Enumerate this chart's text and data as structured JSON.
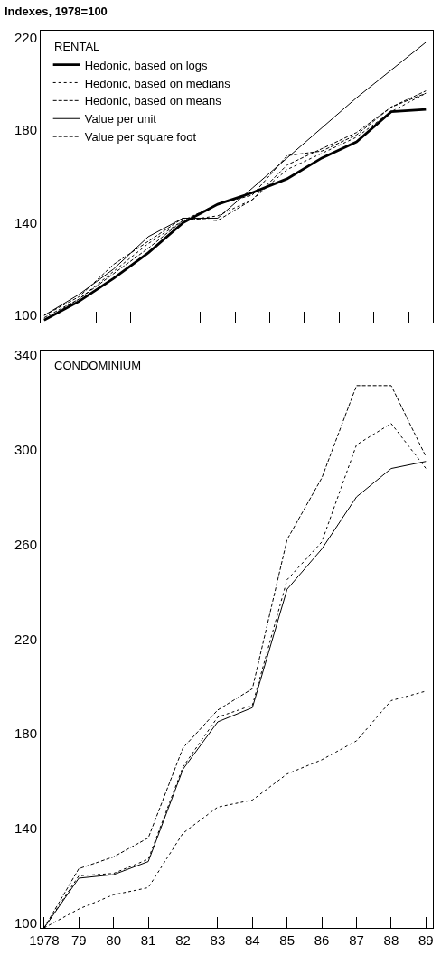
{
  "chart_data": [
    {
      "type": "line",
      "title": "RENTAL",
      "ylabel": "Indexes, 1978=100",
      "x": [
        1978,
        1979,
        1980,
        1981,
        1982,
        1983,
        1984,
        1985,
        1986,
        1987,
        1988,
        1989
      ],
      "xlim": [
        1977.9,
        1989.2
      ],
      "xticks": [
        {
          "value": 1979.5,
          "label": null
        },
        {
          "value": 1980.5,
          "label": null
        },
        {
          "value": 1982.5,
          "label": null
        },
        {
          "value": 1983.5,
          "label": null
        },
        {
          "value": 1984.5,
          "label": null
        },
        {
          "value": 1985.5,
          "label": null
        },
        {
          "value": 1986.5,
          "label": null
        },
        {
          "value": 1987.5,
          "label": null
        },
        {
          "value": 1988.5,
          "label": null
        }
      ],
      "ylim": [
        97,
        223
      ],
      "yticks": [
        100,
        140,
        180,
        220
      ],
      "tick_labels": "y",
      "legend": "top left",
      "marker": "none",
      "series": [
        {
          "name": "Hedonic, based on logs",
          "color": "#000000",
          "line_style": "solid",
          "values": [
            98,
            106,
            116,
            127,
            140,
            148,
            153,
            159,
            168,
            175,
            188,
            189
          ]
        },
        {
          "name": "Hedonic, based on medians",
          "color": "#000000",
          "line_style": "dotted",
          "values": [
            98,
            107,
            119,
            131,
            141,
            143,
            150,
            163,
            170,
            177,
            188,
            196
          ]
        },
        {
          "name": "Hedonic, based on means",
          "color": "#000000",
          "line_style": "dashed",
          "values": [
            99,
            107,
            118,
            129,
            141,
            148,
            152,
            169,
            171,
            178,
            190,
            197
          ]
        },
        {
          "name": "Value per unit",
          "color": "#000000",
          "line_style": "solid",
          "values": [
            100,
            109,
            120,
            134,
            142,
            142,
            155,
            168,
            181,
            194,
            206,
            218
          ]
        },
        {
          "name": "Value per square foot",
          "color": "#000000",
          "line_style": "dashed",
          "values": [
            100,
            108,
            122,
            132,
            142,
            141,
            150,
            165,
            172,
            179,
            190,
            196
          ]
        }
      ]
    },
    {
      "type": "line",
      "title": "CONDOMINIUM",
      "x": [
        1978,
        1979,
        1980,
        1981,
        1982,
        1983,
        1984,
        1985,
        1986,
        1987,
        1988,
        1989
      ],
      "xlim": [
        1977.9,
        1989.2
      ],
      "xticks": [
        {
          "value": 1978,
          "label": "1978"
        },
        {
          "value": 1979,
          "label": "79"
        },
        {
          "value": 1980,
          "label": "80"
        },
        {
          "value": 1981,
          "label": "81"
        },
        {
          "value": 1982,
          "label": "82"
        },
        {
          "value": 1983,
          "label": "83"
        },
        {
          "value": 1984,
          "label": "84"
        },
        {
          "value": 1985,
          "label": "85"
        },
        {
          "value": 1986,
          "label": "86"
        },
        {
          "value": 1987,
          "label": "87"
        },
        {
          "value": 1988,
          "label": "88"
        },
        {
          "value": 1989,
          "label": "89"
        }
      ],
      "ylim": [
        98,
        342
      ],
      "yticks": [
        100,
        140,
        180,
        220,
        260,
        300,
        340
      ],
      "legend": false,
      "marker": "none",
      "series": [
        {
          "color": "#000000",
          "line_style": "solid",
          "values": [
            98,
            119,
            120.5,
            126,
            165,
            185,
            191,
            241,
            258,
            280,
            292,
            295
          ]
        },
        {
          "color": "#000000",
          "line_style": "dashed",
          "values": [
            98,
            123,
            128,
            136,
            174,
            190,
            199,
            262,
            288,
            327,
            327,
            297
          ]
        },
        {
          "color": "#000000",
          "line_style": "dotted",
          "values": [
            98,
            120,
            121,
            127,
            166,
            187,
            192,
            245,
            261,
            302,
            311,
            292
          ]
        },
        {
          "color": "#000000",
          "line_style": "dotted",
          "values": [
            98,
            106,
            112,
            115,
            138,
            149,
            152,
            163,
            169,
            177,
            194,
            198
          ]
        }
      ]
    }
  ]
}
